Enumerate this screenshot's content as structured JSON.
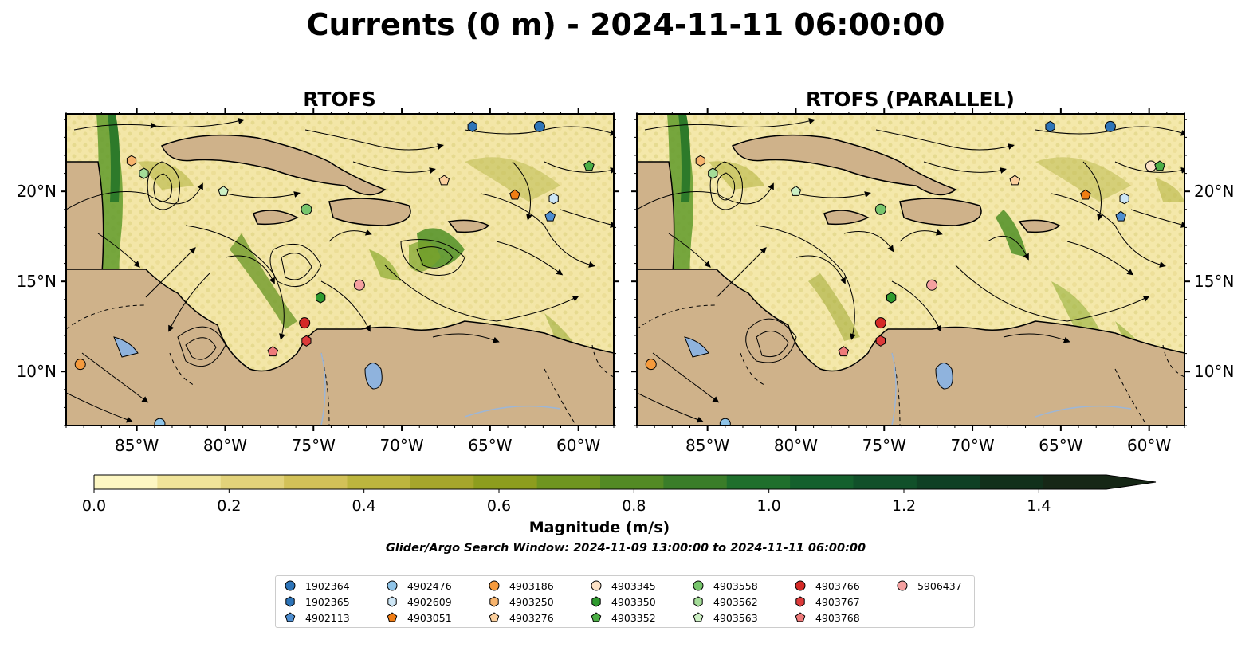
{
  "title": "Currents (0 m) - 2024-11-11 06:00:00",
  "panels": [
    {
      "title": "RTOFS"
    },
    {
      "title": "RTOFS (PARALLEL)"
    }
  ],
  "map": {
    "lon_range": [
      -89,
      -58
    ],
    "lat_range": [
      7,
      24.3
    ],
    "lon_ticks": [
      -85,
      -80,
      -75,
      -70,
      -65,
      -60
    ],
    "lon_tick_labels": [
      "85°W",
      "80°W",
      "75°W",
      "70°W",
      "65°W",
      "60°W"
    ],
    "lat_ticks": [
      10,
      15,
      20
    ],
    "lat_tick_labels": [
      "10°N",
      "15°N",
      "20°N"
    ],
    "land_color": "#cfb28a",
    "water_color": "#f5eab0",
    "lake_color": "#8fb3dd"
  },
  "colorbar": {
    "label": "Magnitude (m/s)",
    "range": [
      0,
      1.5
    ],
    "extend": "max",
    "ticks": [
      0.0,
      0.2,
      0.4,
      0.6,
      0.8,
      1.0,
      1.2,
      1.4
    ],
    "tick_labels": [
      "0.0",
      "0.2",
      "0.4",
      "0.6",
      "0.8",
      "1.0",
      "1.2",
      "1.4"
    ],
    "colors": [
      "#fdf7c3",
      "#f0e49a",
      "#e2d27a",
      "#d2c158",
      "#bcb53e",
      "#a6a62b",
      "#8d9d1e",
      "#6f9520",
      "#538a24",
      "#3a7d29",
      "#1f6f2c",
      "#14602d",
      "#11502a",
      "#0f4024",
      "#11301b",
      "#162716"
    ]
  },
  "subtitle": "Glider/Argo Search Window: 2024-11-09 13:00:00 to 2024-11-11 06:00:00",
  "legend": [
    {
      "label": "1902364",
      "color": "#2d74b8",
      "marker": "circle"
    },
    {
      "label": "1902365",
      "color": "#2d74b8",
      "marker": "hexagon"
    },
    {
      "label": "4902113",
      "color": "#4e8ed0",
      "marker": "pentagon"
    },
    {
      "label": "4902476",
      "color": "#8fc4e8",
      "marker": "circle"
    },
    {
      "label": "4902609",
      "color": "#cde6f5",
      "marker": "hexagon"
    },
    {
      "label": "4903051",
      "color": "#f07d14",
      "marker": "pentagon"
    },
    {
      "label": "4903186",
      "color": "#f59a3c",
      "marker": "circle"
    },
    {
      "label": "4903250",
      "color": "#f7b46d",
      "marker": "hexagon"
    },
    {
      "label": "4903276",
      "color": "#fbcf9d",
      "marker": "pentagon"
    },
    {
      "label": "4903345",
      "color": "#fde2c6",
      "marker": "circle"
    },
    {
      "label": "4903350",
      "color": "#2e9a2e",
      "marker": "hexagon"
    },
    {
      "label": "4903352",
      "color": "#4cae46",
      "marker": "pentagon"
    },
    {
      "label": "4903558",
      "color": "#77c56c",
      "marker": "circle"
    },
    {
      "label": "4903562",
      "color": "#a4dc98",
      "marker": "hexagon"
    },
    {
      "label": "4903563",
      "color": "#cdf0c4",
      "marker": "pentagon"
    },
    {
      "label": "4903766",
      "color": "#d42a27",
      "marker": "circle"
    },
    {
      "label": "4903767",
      "color": "#dd3b3b",
      "marker": "hexagon"
    },
    {
      "label": "4903768",
      "color": "#ee7a7a",
      "marker": "pentagon"
    },
    {
      "label": "5906437",
      "color": "#f5a0a0",
      "marker": "circle"
    }
  ],
  "floats": {
    "panel1": [
      {
        "id": "1902364",
        "lon": -62.2,
        "lat": 23.6
      },
      {
        "id": "1902365",
        "lon": -66.0,
        "lat": 23.6
      },
      {
        "id": "4902113",
        "lon": -61.6,
        "lat": 18.6
      },
      {
        "id": "4902476",
        "lon": -83.7,
        "lat": 7.1
      },
      {
        "id": "4902609",
        "lon": -61.4,
        "lat": 19.6
      },
      {
        "id": "4903051",
        "lon": -63.6,
        "lat": 19.8
      },
      {
        "id": "4903186",
        "lon": -88.2,
        "lat": 10.4
      },
      {
        "id": "4903250",
        "lon": -85.3,
        "lat": 21.7
      },
      {
        "id": "4903276",
        "lon": -67.6,
        "lat": 20.6
      },
      {
        "id": "4903352",
        "lon": -59.4,
        "lat": 21.4
      },
      {
        "id": "4903350",
        "lon": -74.6,
        "lat": 14.1
      },
      {
        "id": "4903558",
        "lon": -75.4,
        "lat": 19.0
      },
      {
        "id": "4903562",
        "lon": -84.6,
        "lat": 21.0
      },
      {
        "id": "4903563",
        "lon": -80.1,
        "lat": 20.0
      },
      {
        "id": "4903766",
        "lon": -75.5,
        "lat": 12.7
      },
      {
        "id": "4903767",
        "lon": -75.4,
        "lat": 11.7
      },
      {
        "id": "4903768",
        "lon": -77.3,
        "lat": 11.1
      },
      {
        "id": "5906437",
        "lon": -72.4,
        "lat": 14.8
      }
    ],
    "panel2": [
      {
        "id": "1902364",
        "lon": -62.2,
        "lat": 23.6
      },
      {
        "id": "1902365",
        "lon": -65.6,
        "lat": 23.6
      },
      {
        "id": "4902113",
        "lon": -61.6,
        "lat": 18.6
      },
      {
        "id": "4902476",
        "lon": -84.0,
        "lat": 7.1
      },
      {
        "id": "4902609",
        "lon": -61.4,
        "lat": 19.6
      },
      {
        "id": "4903051",
        "lon": -63.6,
        "lat": 19.8
      },
      {
        "id": "4903186",
        "lon": -88.2,
        "lat": 10.4
      },
      {
        "id": "4903250",
        "lon": -85.4,
        "lat": 21.7
      },
      {
        "id": "4903276",
        "lon": -67.6,
        "lat": 20.6
      },
      {
        "id": "4903345",
        "lon": -59.9,
        "lat": 21.4
      },
      {
        "id": "4903352",
        "lon": -59.4,
        "lat": 21.4
      },
      {
        "id": "4903350",
        "lon": -74.6,
        "lat": 14.1
      },
      {
        "id": "4903558",
        "lon": -75.2,
        "lat": 19.0
      },
      {
        "id": "4903562",
        "lon": -84.7,
        "lat": 21.0
      },
      {
        "id": "4903563",
        "lon": -80.0,
        "lat": 20.0
      },
      {
        "id": "4903766",
        "lon": -75.2,
        "lat": 12.7
      },
      {
        "id": "4903767",
        "lon": -75.2,
        "lat": 11.7
      },
      {
        "id": "4903768",
        "lon": -77.3,
        "lat": 11.1
      },
      {
        "id": "5906437",
        "lon": -72.3,
        "lat": 14.8
      }
    ]
  }
}
